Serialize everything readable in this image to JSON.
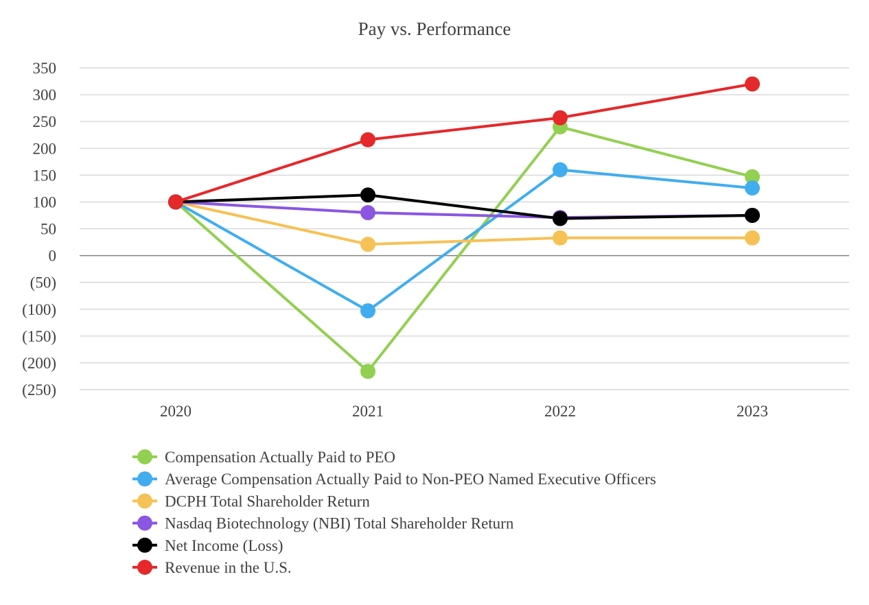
{
  "chart_data": {
    "type": "line",
    "title": "Pay vs. Performance",
    "xlabel": "",
    "ylabel": "",
    "categories": [
      "2020",
      "2021",
      "2022",
      "2023"
    ],
    "ylim": [
      -250,
      350
    ],
    "yticks": [
      350,
      300,
      250,
      200,
      150,
      100,
      50,
      0,
      -50,
      -100,
      -150,
      -200,
      -250
    ],
    "ytick_labels": [
      "350",
      "300",
      "250",
      "200",
      "150",
      "100",
      "50",
      "0",
      "(50)",
      "(100)",
      "(150)",
      "(200)",
      "(250)"
    ],
    "grid": true,
    "legend_position": "bottom",
    "series": [
      {
        "name": "Compensation Actually Paid to PEO",
        "color": "#92D050",
        "values": [
          100,
          -216,
          240,
          147
        ]
      },
      {
        "name": "Average Compensation Actually Paid to Non-PEO Named Executive Officers",
        "color": "#41ADEF",
        "values": [
          100,
          -103,
          160,
          126
        ]
      },
      {
        "name": "DCPH Total Shareholder Return",
        "color": "#F6C155",
        "values": [
          100,
          21,
          33,
          33
        ]
      },
      {
        "name": "Nasdaq Biotechnology (NBI) Total Shareholder Return",
        "color": "#8A56E2",
        "values": [
          100,
          80,
          71,
          75
        ]
      },
      {
        "name": "Net Income (Loss)",
        "color": "#000000",
        "values": [
          100,
          113,
          69,
          75
        ]
      },
      {
        "name": "Revenue in the U.S.",
        "color": "#E5282A",
        "values": [
          100,
          216,
          257,
          320
        ]
      }
    ]
  }
}
